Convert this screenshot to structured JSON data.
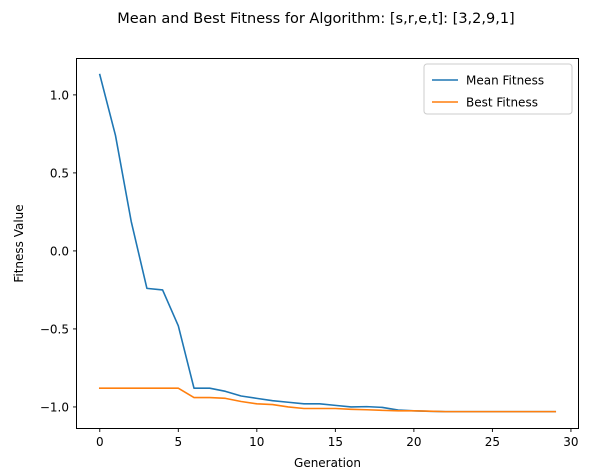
{
  "chart_data": {
    "type": "line",
    "title": "Mean and Best Fitness for Algorithm: [s,r,e,t]: [3,2,9,1]",
    "xlabel": "Generation",
    "ylabel": "Fitness Value",
    "xlim": [
      -1.45,
      30.45
    ],
    "ylim": [
      -1.135,
      1.23
    ],
    "xticks": [
      0,
      5,
      10,
      15,
      20,
      25,
      30
    ],
    "xtick_labels": [
      "0",
      "5",
      "10",
      "15",
      "20",
      "25",
      "30"
    ],
    "yticks": [
      1.0,
      0.5,
      0.0,
      -0.5,
      -1.0
    ],
    "ytick_labels": [
      "1.0",
      "0.5",
      "0.0",
      "−0.5",
      "−1.0"
    ],
    "grid": false,
    "legend_position": "upper right",
    "x": [
      0,
      1,
      2,
      3,
      4,
      5,
      6,
      7,
      8,
      9,
      10,
      11,
      12,
      13,
      14,
      15,
      16,
      17,
      18,
      19,
      20,
      21,
      22,
      23,
      24,
      25,
      26,
      27,
      28,
      29
    ],
    "series": [
      {
        "name": "Mean Fitness",
        "color": "#1f77b4",
        "values": [
          1.13,
          0.74,
          0.19,
          -0.24,
          -0.25,
          -0.48,
          -0.88,
          -0.88,
          -0.9,
          -0.93,
          -0.945,
          -0.96,
          -0.97,
          -0.98,
          -0.98,
          -0.99,
          -1.0,
          -0.998,
          -1.003,
          -1.02,
          -1.025,
          -1.028,
          -1.03,
          -1.03,
          -1.03,
          -1.03,
          -1.03,
          -1.03,
          -1.03,
          -1.03
        ]
      },
      {
        "name": "Best Fitness",
        "color": "#ff7f0e",
        "values": [
          -0.88,
          -0.88,
          -0.88,
          -0.88,
          -0.88,
          -0.88,
          -0.94,
          -0.94,
          -0.945,
          -0.965,
          -0.98,
          -0.985,
          -1.0,
          -1.01,
          -1.01,
          -1.01,
          -1.015,
          -1.018,
          -1.022,
          -1.025,
          -1.025,
          -1.027,
          -1.03,
          -1.03,
          -1.03,
          -1.03,
          -1.03,
          -1.03,
          -1.03,
          -1.03
        ]
      }
    ]
  }
}
